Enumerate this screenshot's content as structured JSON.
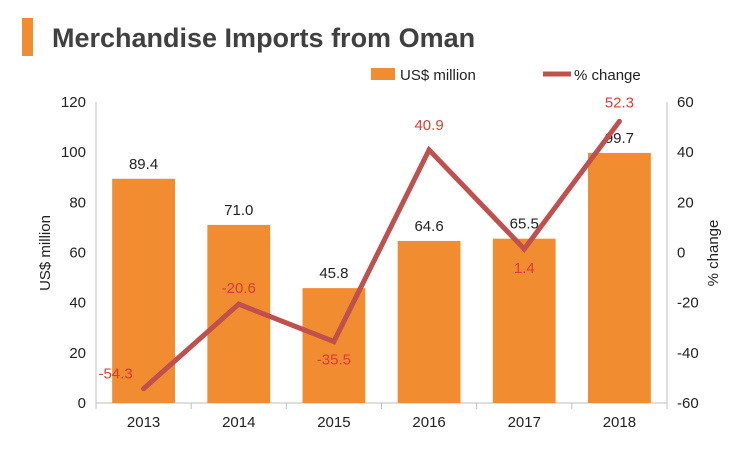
{
  "chart_data": {
    "type": "bar",
    "title": "Merchandise Imports from Oman",
    "categories": [
      "2013",
      "2014",
      "2015",
      "2016",
      "2017",
      "2018"
    ],
    "series": [
      {
        "name": "US$ million",
        "type": "bar",
        "axis": "left",
        "values": [
          89.4,
          71.0,
          45.8,
          64.6,
          65.5,
          99.7
        ],
        "labels": [
          "89.4",
          "71.0",
          "45.8",
          "64.6",
          "65.5",
          "99.7"
        ],
        "color": "#F28C30"
      },
      {
        "name": "% change",
        "type": "line",
        "axis": "right",
        "values": [
          -54.3,
          -20.6,
          -35.5,
          40.9,
          1.4,
          52.3
        ],
        "labels": [
          "-54.3",
          "-20.6",
          "-35.5",
          "40.9",
          "1.4",
          "52.3"
        ],
        "color": "#C0504D"
      }
    ],
    "ylabel": "US$ million",
    "y2label": "% change",
    "ylim": [
      0,
      120
    ],
    "y2lim": [
      -60,
      60
    ],
    "yticks": [
      "0",
      "20",
      "40",
      "60",
      "80",
      "100",
      "120"
    ],
    "y2ticks": [
      "-60",
      "-40",
      "-20",
      "0",
      "20",
      "40",
      "60"
    ],
    "legend_position": "top-right",
    "grid": false,
    "accent_color": "#F28C30",
    "line_label_color": "#E03C31"
  }
}
